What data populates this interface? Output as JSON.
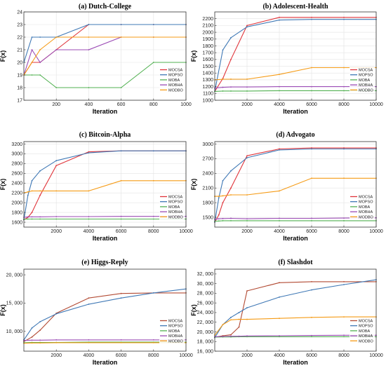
{
  "figure_title": "",
  "chart_data": [
    {
      "type": "line",
      "title": "(a) Dutch-College",
      "xlabel": "Iteration",
      "ylabel": "F(x)",
      "xlim": [
        0,
        1000
      ],
      "ylim": [
        17,
        24
      ],
      "xticks": [
        200,
        400,
        600,
        800,
        1000
      ],
      "xtick_labels": [
        "200",
        "400",
        "600",
        "800",
        "1000"
      ],
      "yticks": [
        17,
        18,
        19,
        20,
        21,
        22,
        23,
        24
      ],
      "ytick_labels": [
        "17",
        "18",
        "19",
        "20",
        "21",
        "22",
        "23",
        "24"
      ],
      "grid": true,
      "legend_position": "right",
      "series": [
        {
          "name": "MOCSA",
          "color": "#e0343a",
          "x": [
            0,
            50,
            100,
            200,
            400,
            600,
            800,
            1000
          ],
          "y": [
            19,
            20,
            20,
            21,
            23,
            23,
            23,
            23
          ]
        },
        {
          "name": "MOPSO",
          "color": "#3f78b5",
          "x": [
            0,
            50,
            100,
            200,
            400,
            600,
            800,
            1000
          ],
          "y": [
            20,
            22,
            22,
            22,
            23,
            23,
            23,
            23
          ]
        },
        {
          "name": "MOBA",
          "color": "#52b152",
          "x": [
            0,
            50,
            100,
            200,
            400,
            600,
            800,
            1000
          ],
          "y": [
            19,
            19,
            19,
            18,
            18,
            18,
            20,
            20
          ]
        },
        {
          "name": "MOBHA",
          "color": "#9b4bb5",
          "x": [
            0,
            50,
            100,
            200,
            400,
            600,
            800,
            1000
          ],
          "y": [
            19,
            21,
            20,
            21,
            21,
            22,
            22,
            22
          ]
        },
        {
          "name": "MODBO",
          "color": "#f59b16",
          "x": [
            0,
            50,
            100,
            200,
            400,
            600,
            800,
            1000
          ],
          "y": [
            19,
            20,
            21,
            22,
            22,
            22,
            22,
            22
          ]
        }
      ]
    },
    {
      "type": "line",
      "title": "(b) Adolescent-Health",
      "xlabel": "Iteration",
      "ylabel": "F(x)",
      "xlim": [
        0,
        10000
      ],
      "ylim": [
        1000,
        2300
      ],
      "xticks": [
        2000,
        4000,
        6000,
        8000,
        10000
      ],
      "xtick_labels": [
        "2000",
        "4000",
        "6000",
        "8000",
        "10000"
      ],
      "yticks": [
        1000,
        1100,
        1200,
        1300,
        1400,
        1500,
        1600,
        1700,
        1800,
        1900,
        2000,
        2100,
        2200
      ],
      "ytick_labels": [
        "1000",
        "1100",
        "1200",
        "1300",
        "1400",
        "1500",
        "1600",
        "1700",
        "1800",
        "1900",
        "2000",
        "2100",
        "2200"
      ],
      "grid": true,
      "legend_position": "right",
      "series": [
        {
          "name": "MOCSA",
          "color": "#e0343a",
          "x": [
            0,
            500,
            1000,
            2000,
            4000,
            6000,
            8000,
            10000
          ],
          "y": [
            1130,
            1320,
            1600,
            2100,
            2220,
            2220,
            2220,
            2220
          ]
        },
        {
          "name": "MOPSO",
          "color": "#3f78b5",
          "x": [
            0,
            500,
            1000,
            2000,
            4000,
            6000,
            8000,
            10000
          ],
          "y": [
            1130,
            1740,
            1920,
            2080,
            2180,
            2190,
            2190,
            2190
          ]
        },
        {
          "name": "MOBA",
          "color": "#52b152",
          "x": [
            0,
            500,
            1000,
            2000,
            4000,
            6000,
            8000,
            10000
          ],
          "y": [
            1130,
            1135,
            1135,
            1135,
            1140,
            1140,
            1140,
            1140
          ]
        },
        {
          "name": "MOBHA",
          "color": "#9b4bb5",
          "x": [
            0,
            500,
            1000,
            2000,
            4000,
            6000,
            8000,
            10000
          ],
          "y": [
            1180,
            1190,
            1195,
            1195,
            1200,
            1200,
            1200,
            1200
          ]
        },
        {
          "name": "MODBO",
          "color": "#f59b16",
          "x": [
            0,
            500,
            1000,
            2000,
            4000,
            6000,
            8000,
            10000
          ],
          "y": [
            1300,
            1310,
            1310,
            1310,
            1380,
            1480,
            1480,
            1480
          ]
        }
      ]
    },
    {
      "type": "line",
      "title": "(c) Bitcoin-Alpha",
      "xlabel": "Iteration",
      "ylabel": "F(x)",
      "xlim": [
        0,
        10000
      ],
      "ylim": [
        1500,
        3250
      ],
      "xticks": [
        2000,
        4000,
        6000,
        8000,
        10000
      ],
      "xtick_labels": [
        "2000",
        "4000",
        "6000",
        "8000",
        "10000"
      ],
      "yticks": [
        1600,
        1800,
        2000,
        2200,
        2400,
        2600,
        2800,
        3000,
        3200
      ],
      "ytick_labels": [
        "1600",
        "1800",
        "2000",
        "2200",
        "2400",
        "2600",
        "2800",
        "3000",
        "3200"
      ],
      "grid": true,
      "legend_position": "right",
      "series": [
        {
          "name": "MOCSA",
          "color": "#e0343a",
          "x": [
            0,
            250,
            500,
            1000,
            2000,
            4000,
            6000,
            8000,
            10000
          ],
          "y": [
            1650,
            1700,
            1800,
            2150,
            2760,
            3040,
            3060,
            3060,
            3060
          ]
        },
        {
          "name": "MOPSO",
          "color": "#3f78b5",
          "x": [
            0,
            250,
            500,
            1000,
            2000,
            4000,
            6000,
            8000,
            10000
          ],
          "y": [
            1650,
            2150,
            2450,
            2650,
            2860,
            3020,
            3060,
            3060,
            3060
          ]
        },
        {
          "name": "MOBA",
          "color": "#52b152",
          "x": [
            0,
            250,
            500,
            1000,
            2000,
            4000,
            6000,
            8000,
            10000
          ],
          "y": [
            1660,
            1665,
            1665,
            1665,
            1665,
            1665,
            1665,
            1665,
            1665
          ]
        },
        {
          "name": "MOBHA",
          "color": "#9b4bb5",
          "x": [
            0,
            250,
            500,
            1000,
            2000,
            4000,
            6000,
            8000,
            10000
          ],
          "y": [
            1700,
            1710,
            1710,
            1710,
            1715,
            1715,
            1720,
            1720,
            1720
          ]
        },
        {
          "name": "MODBO",
          "color": "#f59b16",
          "x": [
            0,
            250,
            500,
            1000,
            2000,
            4000,
            6000,
            8000,
            10000
          ],
          "y": [
            2200,
            2220,
            2240,
            2240,
            2240,
            2240,
            2450,
            2450,
            2450
          ]
        }
      ]
    },
    {
      "type": "line",
      "title": "(d) Advogato",
      "xlabel": "Iteration",
      "ylabel": "F(x)",
      "xlim": [
        0,
        10000
      ],
      "ylim": [
        1300,
        3050
      ],
      "xticks": [
        2000,
        4000,
        6000,
        8000,
        10000
      ],
      "xtick_labels": [
        "2000",
        "4000",
        "6000",
        "8000",
        "10000"
      ],
      "yticks": [
        1500,
        1800,
        2100,
        2400,
        2700,
        3000
      ],
      "ytick_labels": [
        "1500",
        "1800",
        "2100",
        "2400",
        "2700",
        "3000"
      ],
      "grid": true,
      "legend_position": "right",
      "series": [
        {
          "name": "MOCSA",
          "color": "#e0343a",
          "x": [
            0,
            250,
            500,
            1000,
            2000,
            4000,
            6000,
            8000,
            10000
          ],
          "y": [
            1400,
            1550,
            1800,
            2100,
            2760,
            2900,
            2920,
            2920,
            2920
          ]
        },
        {
          "name": "MOPSO",
          "color": "#3f78b5",
          "x": [
            0,
            250,
            500,
            1000,
            2000,
            4000,
            6000,
            8000,
            10000
          ],
          "y": [
            1400,
            1900,
            2250,
            2450,
            2720,
            2880,
            2900,
            2900,
            2900
          ]
        },
        {
          "name": "MOBA",
          "color": "#52b152",
          "x": [
            0,
            250,
            500,
            1000,
            2000,
            4000,
            6000,
            8000,
            10000
          ],
          "y": [
            1420,
            1425,
            1430,
            1430,
            1430,
            1430,
            1430,
            1430,
            1430
          ]
        },
        {
          "name": "MOBHA",
          "color": "#9b4bb5",
          "x": [
            0,
            250,
            500,
            1000,
            2000,
            4000,
            6000,
            8000,
            10000
          ],
          "y": [
            1460,
            1470,
            1475,
            1480,
            1470,
            1480,
            1480,
            1485,
            1490
          ]
        },
        {
          "name": "MODBO",
          "color": "#f59b16",
          "x": [
            0,
            250,
            500,
            1000,
            2000,
            4000,
            6000,
            8000,
            10000
          ],
          "y": [
            1930,
            1930,
            1940,
            1960,
            1960,
            2040,
            2300,
            2300,
            2300
          ]
        }
      ]
    },
    {
      "type": "line",
      "title": "(e) Higgs-Reply",
      "xlabel": "Iteration",
      "ylabel": "F(x)",
      "xlim": [
        0,
        10000
      ],
      "ylim": [
        6500,
        21000
      ],
      "xticks": [
        2000,
        4000,
        6000,
        8000,
        10000
      ],
      "xtick_labels": [
        "2000",
        "4000",
        "6000",
        "8000",
        "10000"
      ],
      "yticks": [
        10000,
        15000,
        20000
      ],
      "ytick_labels": [
        "10, 000",
        "15, 000",
        "20, 000"
      ],
      "grid": false,
      "legend_position": "right",
      "series": [
        {
          "name": "MOCSA",
          "color": "#b24a33",
          "x": [
            0,
            500,
            1000,
            2000,
            4000,
            6000,
            8000,
            10000
          ],
          "y": [
            8200,
            9000,
            10200,
            13200,
            15900,
            16700,
            16800,
            16800
          ]
        },
        {
          "name": "MOPSO",
          "color": "#3f78b5",
          "x": [
            0,
            500,
            1000,
            2000,
            4000,
            6000,
            8000,
            10000
          ],
          "y": [
            8500,
            10600,
            11700,
            13100,
            14800,
            15900,
            16800,
            17500
          ]
        },
        {
          "name": "MOBA",
          "color": "#52b152",
          "x": [
            0,
            500,
            1000,
            2000,
            4000,
            6000,
            8000,
            10000
          ],
          "y": [
            8000,
            8050,
            8050,
            8050,
            8100,
            8100,
            8100,
            8100
          ]
        },
        {
          "name": "MOBHA",
          "color": "#9b4bb5",
          "x": [
            0,
            500,
            1000,
            2000,
            4000,
            6000,
            8000,
            10000
          ],
          "y": [
            8400,
            8450,
            8450,
            8500,
            8500,
            8500,
            8500,
            8500
          ]
        },
        {
          "name": "MODBO",
          "color": "#f59b16",
          "x": [
            0,
            500,
            1000,
            2000,
            4000,
            6000,
            8000,
            10000
          ],
          "y": [
            7900,
            7950,
            7950,
            8000,
            8000,
            8000,
            8000,
            8000
          ]
        }
      ]
    },
    {
      "type": "line",
      "title": "(f) Slashdot",
      "xlabel": "Iteration",
      "ylabel": "F(x)",
      "xlim": [
        0,
        10000
      ],
      "ylim": [
        16000,
        33000
      ],
      "xticks": [
        2000,
        4000,
        6000,
        8000,
        10000
      ],
      "xtick_labels": [
        "2000",
        "4000",
        "6000",
        "8000",
        "10000"
      ],
      "yticks": [
        16000,
        18000,
        20000,
        22000,
        24000,
        26000,
        28000,
        30000,
        32000
      ],
      "ytick_labels": [
        "16, 000",
        "18, 000",
        "20, 000",
        "22, 000",
        "24, 000",
        "26, 000",
        "28, 000",
        "30, 000",
        "32, 000"
      ],
      "grid": false,
      "legend_position": "right",
      "series": [
        {
          "name": "MOCSA",
          "color": "#b24a33",
          "x": [
            0,
            500,
            1000,
            1500,
            2000,
            4000,
            6000,
            8000,
            10000
          ],
          "y": [
            18900,
            19200,
            19400,
            21000,
            28500,
            30200,
            30400,
            30400,
            30400
          ]
        },
        {
          "name": "MOPSO",
          "color": "#3f78b5",
          "x": [
            0,
            500,
            1000,
            1500,
            2000,
            4000,
            6000,
            8000,
            10000
          ],
          "y": [
            18800,
            21500,
            23000,
            24000,
            25000,
            27200,
            28700,
            29800,
            30800
          ]
        },
        {
          "name": "MOBA",
          "color": "#52b152",
          "x": [
            0,
            500,
            1000,
            1500,
            2000,
            4000,
            6000,
            8000,
            10000
          ],
          "y": [
            18900,
            18950,
            18950,
            19000,
            19000,
            19000,
            19000,
            19000,
            19000
          ]
        },
        {
          "name": "MOBHA",
          "color": "#9b4bb5",
          "x": [
            0,
            500,
            1000,
            1500,
            2000,
            4000,
            6000,
            8000,
            10000
          ],
          "y": [
            19000,
            19050,
            19100,
            19100,
            19150,
            19200,
            19250,
            19300,
            19300
          ]
        },
        {
          "name": "MODBO",
          "color": "#f59b16",
          "x": [
            0,
            500,
            1000,
            1500,
            2000,
            4000,
            6000,
            8000,
            10000
          ],
          "y": [
            19300,
            21500,
            22500,
            22600,
            22600,
            22800,
            23000,
            23100,
            23100
          ]
        }
      ]
    }
  ]
}
